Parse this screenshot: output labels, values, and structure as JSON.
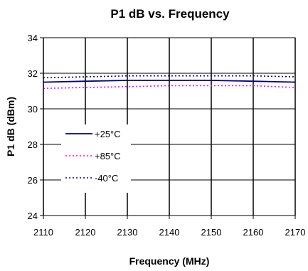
{
  "chart_data": {
    "type": "line",
    "title": "P1 dB vs. Frequency",
    "xlabel": "Frequency (MHz)",
    "ylabel": "P1 dB (dBm)",
    "x": [
      2110,
      2120,
      2130,
      2140,
      2150,
      2160,
      2170
    ],
    "xlim": [
      2110,
      2170
    ],
    "ylim": [
      24,
      34
    ],
    "xticks": [
      "2110",
      "2120",
      "2130",
      "2140",
      "2150",
      "2160",
      "2170"
    ],
    "yticks": [
      "24",
      "26",
      "28",
      "30",
      "32",
      "34"
    ],
    "grid": true,
    "legend_position": "lower-left",
    "series": [
      {
        "name": "+25°C",
        "values": [
          31.5,
          31.55,
          31.6,
          31.6,
          31.6,
          31.55,
          31.5
        ],
        "color": "#000080",
        "style": "solid"
      },
      {
        "name": "+85°C",
        "values": [
          31.15,
          31.2,
          31.25,
          31.3,
          31.3,
          31.3,
          31.2
        ],
        "color": "#ff00ff",
        "style": "dotted"
      },
      {
        "name": "-40°C",
        "values": [
          31.75,
          31.8,
          31.85,
          31.85,
          31.85,
          31.85,
          31.8
        ],
        "color": "#000080",
        "style": "dotted"
      }
    ]
  }
}
